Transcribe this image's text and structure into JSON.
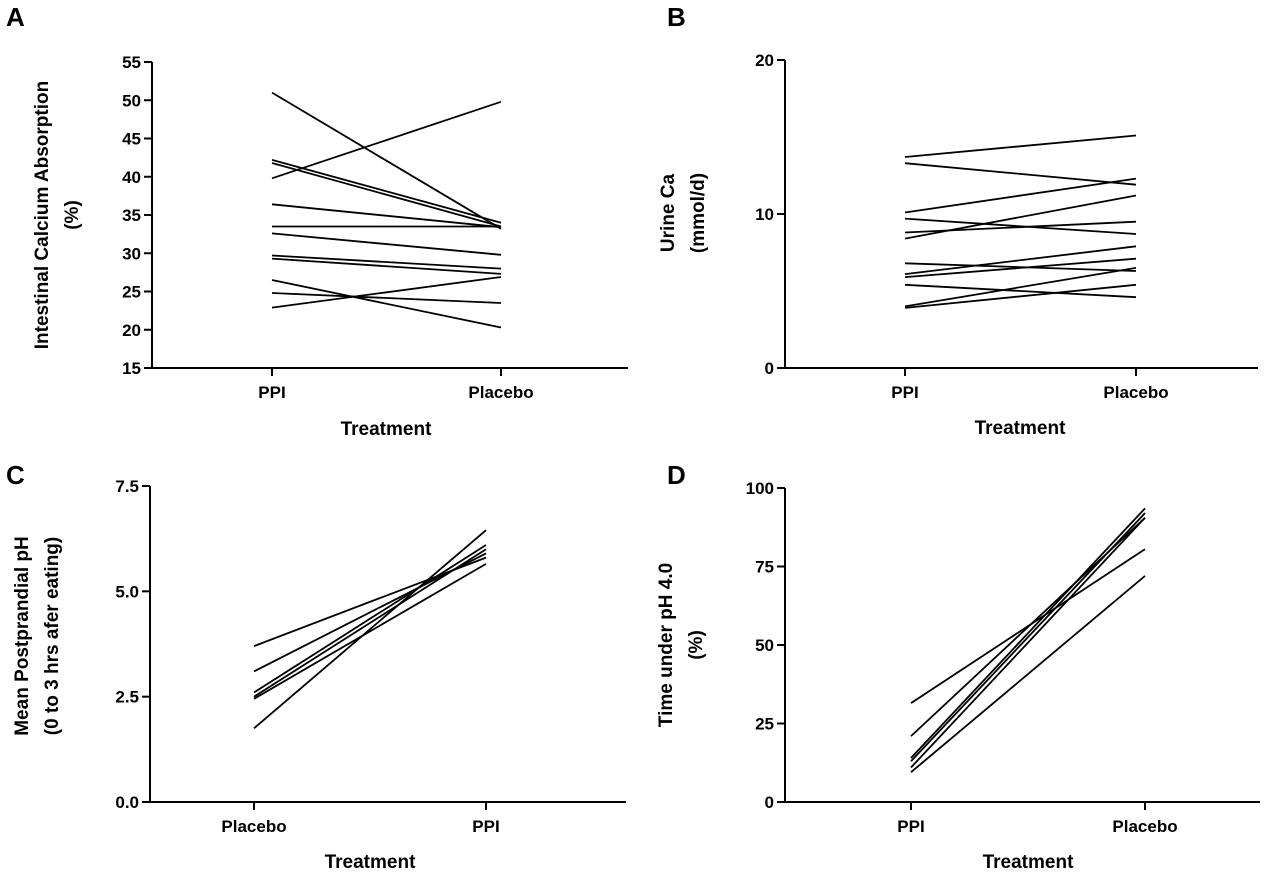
{
  "chart_data": [
    {
      "panel": "A",
      "type": "line",
      "categories": [
        "PPI",
        "Placebo"
      ],
      "xlabel": "Treatment",
      "ylabel": [
        "Intestinal Calcium  Absorption",
        "(%)"
      ],
      "ylim": [
        15,
        55
      ],
      "yticks": [
        "15",
        "20",
        "25",
        "30",
        "35",
        "40",
        "45",
        "50",
        "55"
      ],
      "grid": false,
      "series": [
        {
          "values": [
            51.0,
            33.2
          ]
        },
        {
          "values": [
            39.8,
            49.8
          ]
        },
        {
          "values": [
            42.2,
            34.0
          ]
        },
        {
          "values": [
            41.8,
            33.5
          ]
        },
        {
          "values": [
            36.4,
            33.4
          ]
        },
        {
          "values": [
            33.5,
            33.5
          ]
        },
        {
          "values": [
            32.6,
            29.8
          ]
        },
        {
          "values": [
            29.7,
            28.0
          ]
        },
        {
          "values": [
            29.3,
            27.3
          ]
        },
        {
          "values": [
            26.5,
            20.3
          ]
        },
        {
          "values": [
            24.8,
            23.5
          ]
        },
        {
          "values": [
            22.9,
            26.9
          ]
        }
      ]
    },
    {
      "panel": "B",
      "type": "line",
      "categories": [
        "PPI",
        "Placebo"
      ],
      "xlabel": "Treatment",
      "ylabel": [
        "Urine Ca",
        "(mmol/d)"
      ],
      "ylim": [
        0,
        20
      ],
      "yticks": [
        "0",
        "10",
        "20"
      ],
      "grid": false,
      "series": [
        {
          "values": [
            13.7,
            15.1
          ]
        },
        {
          "values": [
            13.3,
            11.9
          ]
        },
        {
          "values": [
            10.1,
            12.3
          ]
        },
        {
          "values": [
            9.7,
            8.7
          ]
        },
        {
          "values": [
            8.8,
            9.5
          ]
        },
        {
          "values": [
            8.4,
            11.2
          ]
        },
        {
          "values": [
            6.8,
            6.3
          ]
        },
        {
          "values": [
            6.1,
            7.9
          ]
        },
        {
          "values": [
            5.9,
            7.1
          ]
        },
        {
          "values": [
            5.4,
            4.6
          ]
        },
        {
          "values": [
            4.0,
            6.5
          ]
        },
        {
          "values": [
            3.9,
            5.4
          ]
        }
      ]
    },
    {
      "panel": "C",
      "type": "line",
      "categories": [
        "Placebo",
        "PPI"
      ],
      "xlabel": "Treatment",
      "ylabel": [
        "Mean  Postprandial pH",
        "(0 to 3 hrs afer eating)"
      ],
      "ylim": [
        0,
        7.5
      ],
      "yticks": [
        "0.0",
        "2.5",
        "5.0",
        "7.5"
      ],
      "grid": false,
      "series": [
        {
          "values": [
            3.7,
            5.8
          ]
        },
        {
          "values": [
            3.1,
            5.9
          ]
        },
        {
          "values": [
            2.6,
            6.1
          ]
        },
        {
          "values": [
            2.5,
            6.0
          ]
        },
        {
          "values": [
            2.45,
            5.65
          ]
        },
        {
          "values": [
            1.75,
            6.45
          ]
        }
      ]
    },
    {
      "panel": "D",
      "type": "line",
      "categories": [
        "PPI",
        "Placebo"
      ],
      "xlabel": "Treatment",
      "ylabel": [
        "Time under pH 4.0",
        "(%)"
      ],
      "ylim": [
        0,
        100
      ],
      "yticks": [
        "0",
        "25",
        "50",
        "75",
        "100"
      ],
      "grid": false,
      "series": [
        {
          "values": [
            31.5,
            80.5
          ]
        },
        {
          "values": [
            21.0,
            90.5
          ]
        },
        {
          "values": [
            14.0,
            93.5
          ]
        },
        {
          "values": [
            13.0,
            92.0
          ]
        },
        {
          "values": [
            11.0,
            90.5
          ]
        },
        {
          "values": [
            9.5,
            72.0
          ]
        }
      ]
    }
  ]
}
